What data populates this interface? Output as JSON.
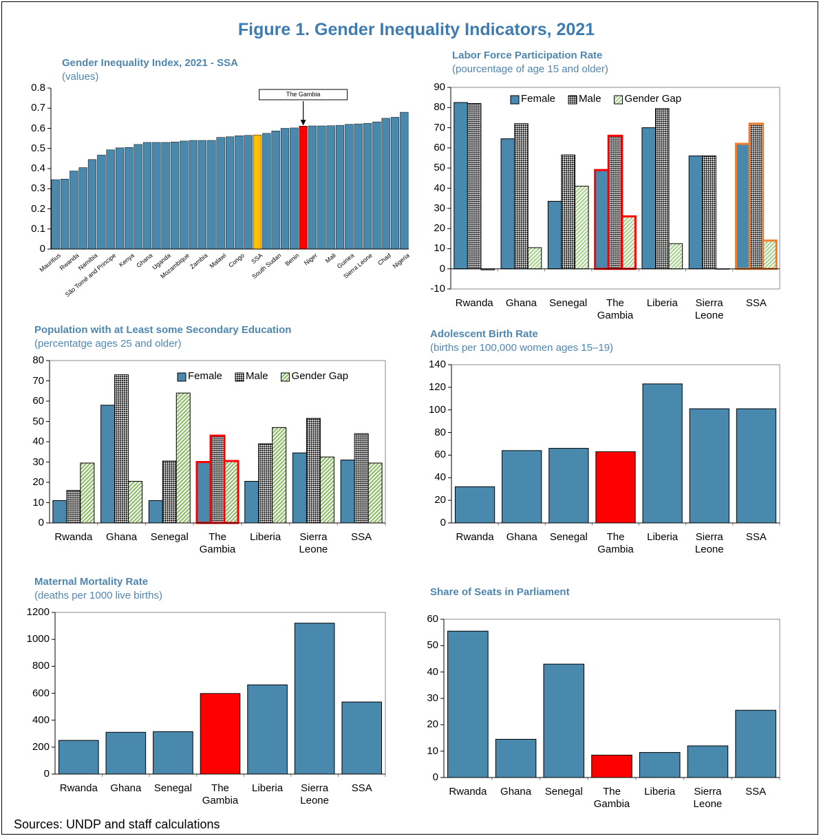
{
  "title": "Figure 1. Gender Inequality Indicators, 2021",
  "source": "Sources: UNDP and staff calculations",
  "chart_data": [
    {
      "type": "bar",
      "title": "Gender Inequality Index, 2021 - SSA",
      "subtitle": "(values)",
      "categories": [
        "Mauritius",
        null,
        "Rwanda",
        null,
        "Namibia",
        null,
        "São Tomé and Principe",
        null,
        "Kenya",
        null,
        "Ghana",
        null,
        "Uganda",
        null,
        "Mozambique",
        null,
        "Zambia",
        null,
        "Malawi",
        null,
        "Congo",
        null,
        "SSA",
        null,
        "South Sudan",
        null,
        "Benin",
        null,
        "Niger",
        null,
        "Mali",
        null,
        "Guinea",
        null,
        "Sierra Leone",
        null,
        "Chad",
        null,
        "Nigeria"
      ],
      "values": [
        0.345,
        0.348,
        0.388,
        0.405,
        0.445,
        0.467,
        0.493,
        0.503,
        0.505,
        0.52,
        0.53,
        0.53,
        0.53,
        0.532,
        0.537,
        0.54,
        0.54,
        0.54,
        0.555,
        0.558,
        0.563,
        0.565,
        0.567,
        0.575,
        0.587,
        0.6,
        0.602,
        0.611,
        0.612,
        0.612,
        0.613,
        0.615,
        0.62,
        0.622,
        0.625,
        0.632,
        0.65,
        0.655,
        0.68
      ],
      "color": "#4a89ae",
      "highlight_style": "fill",
      "highlight": [
        {
          "index": 22,
          "color": "#ffc000"
        },
        {
          "index": 27,
          "color": "#ff0000",
          "label": "The Gambia"
        }
      ],
      "ylim": [
        0,
        0.8
      ],
      "yticks": [
        0,
        0.1,
        0.2,
        0.3,
        0.4,
        0.5,
        0.6,
        0.7,
        0.8
      ]
    },
    {
      "type": "grouped_bar",
      "title": "Labor Force Participation Rate",
      "subtitle": "(pourcentage of age 15 and older)",
      "categories": [
        "Rwanda",
        "Ghana",
        "Senegal",
        "The Gambia",
        "Liberia",
        "Sierra Leone",
        "SSA"
      ],
      "series": [
        {
          "name": "Female",
          "color": "#4a89ae",
          "pattern": "solid",
          "values": [
            82.5,
            64.5,
            33.5,
            49,
            70,
            56,
            62
          ]
        },
        {
          "name": "Male",
          "color": "#000000",
          "pattern": "checker",
          "values": [
            82,
            72,
            56.5,
            66,
            79.5,
            56,
            72
          ]
        },
        {
          "name": "Gender Gap",
          "color": "#a9d08e",
          "pattern": "stripes",
          "values": [
            -0.5,
            10.5,
            41,
            26,
            12.5,
            0,
            14
          ]
        }
      ],
      "highlight_style": "outline",
      "highlight": [
        {
          "index": 3,
          "color": "#ff0000"
        },
        {
          "index": 6,
          "color": "#ed7d31"
        }
      ],
      "ylim": [
        -10,
        90
      ],
      "yticks": [
        -10,
        0,
        10,
        20,
        30,
        40,
        50,
        60,
        70,
        80,
        90
      ]
    },
    {
      "type": "grouped_bar",
      "title": "Population with at Least some Secondary Education",
      "subtitle": "(percentatge ages 25 and older)",
      "categories": [
        "Rwanda",
        "Ghana",
        "Senegal",
        "The Gambia",
        "Liberia",
        "Sierra Leone",
        "SSA"
      ],
      "series": [
        {
          "name": "Female",
          "color": "#4a89ae",
          "pattern": "solid",
          "values": [
            11,
            58,
            11,
            30,
            20.5,
            34.5,
            31
          ]
        },
        {
          "name": "Male",
          "color": "#000000",
          "pattern": "checker",
          "values": [
            16,
            73,
            30.5,
            43,
            39,
            51.5,
            44
          ]
        },
        {
          "name": "Gender Gap",
          "color": "#8fba6a",
          "pattern": "stripes",
          "values": [
            29.5,
            20.5,
            64,
            30.5,
            47,
            32.5,
            29.5
          ]
        }
      ],
      "highlight_style": "outline",
      "highlight": [
        {
          "index": 3,
          "color": "#ff0000"
        }
      ],
      "ylim": [
        0,
        80
      ],
      "yticks": [
        0,
        10,
        20,
        30,
        40,
        50,
        60,
        70,
        80
      ]
    },
    {
      "type": "bar",
      "title": "Adolescent Birth Rate",
      "subtitle": "(births per 100,000 women ages 15–19)",
      "categories": [
        "Rwanda",
        "Ghana",
        "Senegal",
        "The Gambia",
        "Liberia",
        "Sierra Leone",
        "SSA"
      ],
      "values": [
        32,
        64,
        66,
        63,
        123,
        101,
        101
      ],
      "color": "#4a89ae",
      "highlight_style": "fill",
      "highlight": [
        {
          "index": 3,
          "color": "#ff0000"
        }
      ],
      "ylim": [
        0,
        140
      ],
      "yticks": [
        0,
        20,
        40,
        60,
        80,
        100,
        120,
        140
      ]
    },
    {
      "type": "bar",
      "title": "Maternal Mortality Rate",
      "subtitle": "(deaths per 1000 live births)",
      "categories": [
        "Rwanda",
        "Ghana",
        "Senegal",
        "The Gambia",
        "Liberia",
        "Sierra Leone",
        "SSA"
      ],
      "values": [
        250,
        310,
        315,
        598,
        662,
        1120,
        535
      ],
      "color": "#4a89ae",
      "highlight_style": "fill",
      "highlight": [
        {
          "index": 3,
          "color": "#ff0000"
        }
      ],
      "ylim": [
        0,
        1200
      ],
      "yticks": [
        0,
        200,
        400,
        600,
        800,
        1000,
        1200
      ]
    },
    {
      "type": "bar",
      "title": "Share of Seats in Parliament",
      "categories": [
        "Rwanda",
        "Ghana",
        "Senegal",
        "The Gambia",
        "Liberia",
        "Sierra Leone",
        "SSA"
      ],
      "values": [
        55.5,
        14.5,
        43,
        8.5,
        9.5,
        12,
        25.5
      ],
      "color": "#4a89ae",
      "highlight_style": "fill",
      "highlight": [
        {
          "index": 3,
          "color": "#ff0000"
        }
      ],
      "ylim": [
        0,
        60
      ],
      "yticks": [
        0,
        10,
        20,
        30,
        40,
        50,
        60
      ]
    }
  ]
}
